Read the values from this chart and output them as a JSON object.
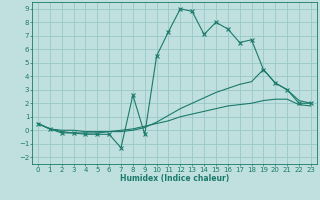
{
  "xlabel": "Humidex (Indice chaleur)",
  "xlim": [
    -0.5,
    23.5
  ],
  "ylim": [
    -2.5,
    9.5
  ],
  "xticks": [
    0,
    1,
    2,
    3,
    4,
    5,
    6,
    7,
    8,
    9,
    10,
    11,
    12,
    13,
    14,
    15,
    16,
    17,
    18,
    19,
    20,
    21,
    22,
    23
  ],
  "yticks": [
    -2,
    -1,
    0,
    1,
    2,
    3,
    4,
    5,
    6,
    7,
    8,
    9
  ],
  "bg_color": "#c0e0e0",
  "line_color": "#1a7a6a",
  "grid_color": "#99c8c8",
  "main_x": [
    0,
    1,
    2,
    3,
    4,
    5,
    6,
    7,
    8,
    9,
    10,
    11,
    12,
    13,
    14,
    15,
    16,
    17,
    18,
    19,
    20,
    21,
    22,
    23
  ],
  "main_y": [
    0.5,
    0.1,
    -0.2,
    -0.2,
    -0.3,
    -0.3,
    -0.3,
    -1.3,
    2.6,
    -0.3,
    5.5,
    7.3,
    9.0,
    8.8,
    7.1,
    8.0,
    7.5,
    6.5,
    6.7,
    4.5,
    3.5,
    3.0,
    2.0,
    2.0
  ],
  "upper_x": [
    0,
    1,
    2,
    3,
    4,
    5,
    6,
    7,
    8,
    9,
    10,
    11,
    12,
    13,
    14,
    15,
    16,
    17,
    18,
    19,
    20,
    21,
    22,
    23
  ],
  "upper_y": [
    0.5,
    0.1,
    0.0,
    0.0,
    -0.1,
    -0.1,
    -0.1,
    -0.1,
    0.0,
    0.2,
    0.6,
    1.1,
    1.6,
    2.0,
    2.4,
    2.8,
    3.1,
    3.4,
    3.6,
    4.5,
    3.5,
    3.0,
    2.2,
    2.0
  ],
  "lower_x": [
    0,
    1,
    2,
    3,
    4,
    5,
    6,
    7,
    8,
    9,
    10,
    11,
    12,
    13,
    14,
    15,
    16,
    17,
    18,
    19,
    20,
    21,
    22,
    23
  ],
  "lower_y": [
    0.5,
    0.1,
    -0.1,
    -0.2,
    -0.2,
    -0.2,
    -0.1,
    0.0,
    0.1,
    0.3,
    0.5,
    0.7,
    1.0,
    1.2,
    1.4,
    1.6,
    1.8,
    1.9,
    2.0,
    2.2,
    2.3,
    2.3,
    1.9,
    1.8
  ]
}
